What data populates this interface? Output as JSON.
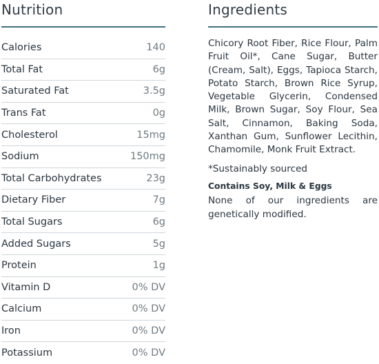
{
  "nutrition": {
    "title": "Nutrition",
    "rows": [
      {
        "name": "Calories",
        "value": "140"
      },
      {
        "name": "Total Fat",
        "value": "6g"
      },
      {
        "name": "Saturated Fat",
        "value": "3.5g"
      },
      {
        "name": "Trans Fat",
        "value": "0g"
      },
      {
        "name": "Cholesterol",
        "value": "15mg"
      },
      {
        "name": "Sodium",
        "value": "150mg"
      },
      {
        "name": "Total Carbohydrates",
        "value": "23g"
      },
      {
        "name": "Dietary Fiber",
        "value": "7g"
      },
      {
        "name": "Total Sugars",
        "value": "6g"
      },
      {
        "name": "Added Sugars",
        "value": "5g"
      },
      {
        "name": "Protein",
        "value": "1g"
      },
      {
        "name": "Vitamin D",
        "value": "0% DV"
      },
      {
        "name": "Calcium",
        "value": "0% DV"
      },
      {
        "name": "Iron",
        "value": "0% DV"
      },
      {
        "name": "Potassium",
        "value": "0% DV"
      }
    ]
  },
  "ingredients": {
    "title": "Ingredients",
    "list": "Chicory Root Fiber, Rice Flour, Palm Fruit Oil*, Cane Sugar, Butter (Cream, Salt), Eggs, Tapioca Starch, Potato Starch, Brown Rice Syrup, Vegetable Glycerin, Condensed Milk, Brown Sugar, Soy Flour, Sea Salt, Cinnamon, Baking Soda, Xanthan Gum, Sunflower Lecithin, Chamomile, Monk Fruit Extract.",
    "footnote": "*Sustainably sourced",
    "allergens": "Contains Soy, Milk & Eggs",
    "gmo_note": "None of our ingredients are genetically modified."
  },
  "colors": {
    "accent_rule": "#3f6f80",
    "text": "#2a3640",
    "value_text": "#6e7a82",
    "row_divider": "#cfd6da"
  }
}
